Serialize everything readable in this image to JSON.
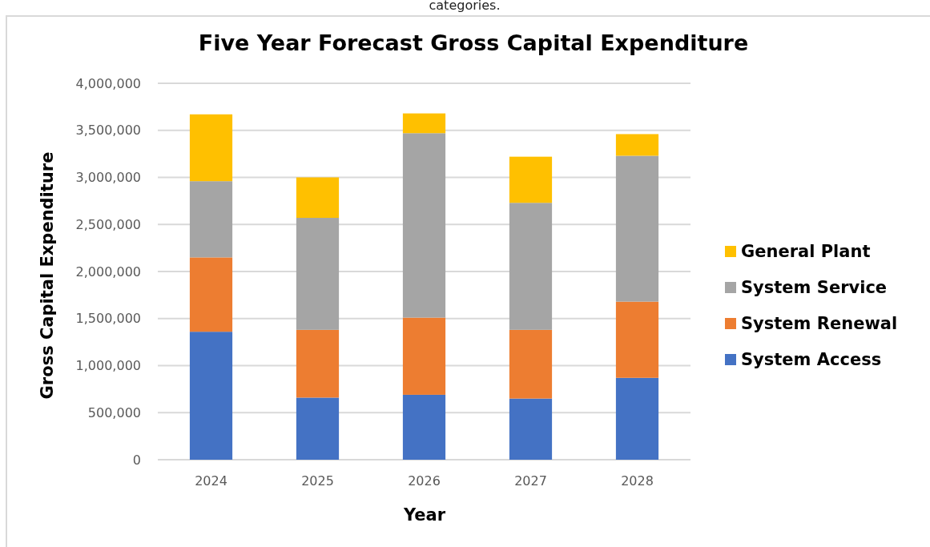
{
  "chart_data": {
    "type": "bar",
    "stacked": true,
    "title": "Five Year Forecast Gross Capital Expenditure",
    "xlabel": "Year",
    "ylabel": "Gross Capital Expenditure",
    "annotations": [
      "categories."
    ],
    "categories": [
      "2024",
      "2025",
      "2026",
      "2027",
      "2028"
    ],
    "series": [
      {
        "name": "System Access",
        "color": "#4472c4",
        "values": [
          1360000,
          660000,
          690000,
          650000,
          870000
        ]
      },
      {
        "name": "System Renewal",
        "color": "#ed7d31",
        "values": [
          790000,
          720000,
          820000,
          730000,
          810000
        ]
      },
      {
        "name": "System Service",
        "color": "#a5a5a5",
        "values": [
          810000,
          1190000,
          1960000,
          1350000,
          1550000
        ]
      },
      {
        "name": "General Plant",
        "color": "#ffc000",
        "values": [
          710000,
          430000,
          210000,
          490000,
          230000
        ]
      }
    ],
    "ylim": [
      0,
      4000000
    ],
    "yticks": [
      {
        "value": 0,
        "label": "0"
      },
      {
        "value": 500000,
        "label": "500,000"
      },
      {
        "value": 1000000,
        "label": "1,000,000"
      },
      {
        "value": 1500000,
        "label": "1,500,000"
      },
      {
        "value": 2000000,
        "label": "2,000,000"
      },
      {
        "value": 2500000,
        "label": "2,500,000"
      },
      {
        "value": 3000000,
        "label": "3,000,000"
      },
      {
        "value": 3500000,
        "label": "3,500,000"
      },
      {
        "value": 4000000,
        "label": "4,000,000"
      }
    ],
    "grid": "y",
    "legend": "right"
  }
}
